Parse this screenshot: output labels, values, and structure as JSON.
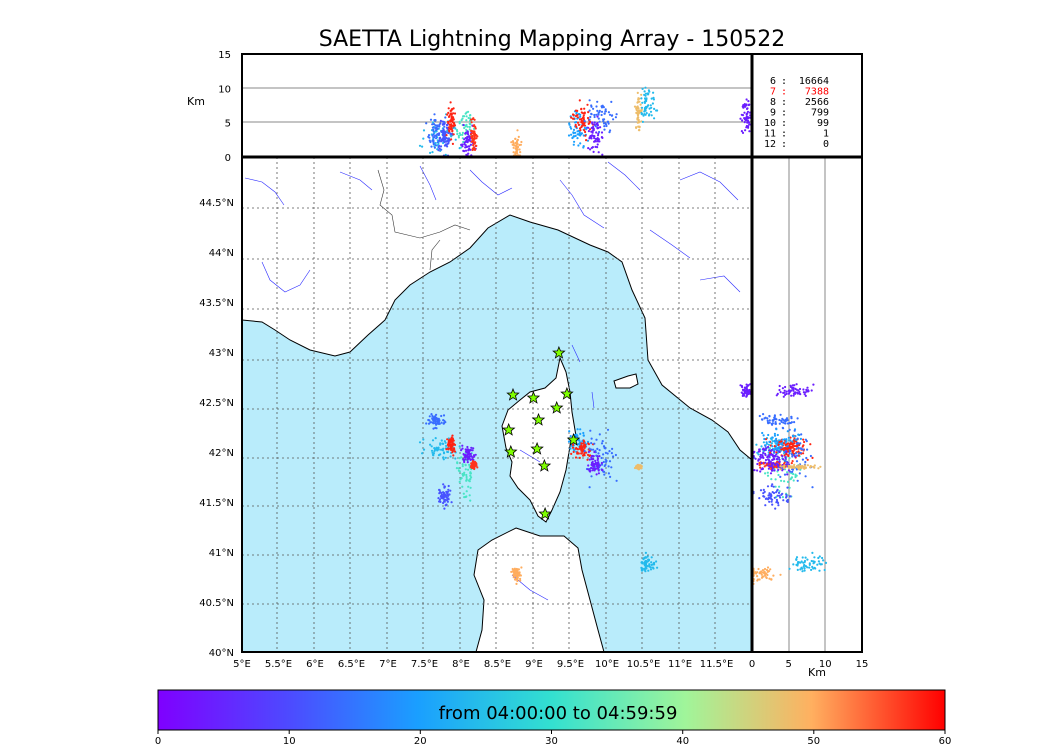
{
  "chart_data": {
    "type": "scatter",
    "title": "SAETTA Lightning Mapping Array - 150522",
    "map": {
      "lon_range": [
        5.0,
        12.0
      ],
      "lat_range": [
        40.0,
        44.95
      ],
      "lon_ticks": [
        "5°E",
        "5.5°E",
        "6°E",
        "6.5°E",
        "7°E",
        "7.5°E",
        "8°E",
        "8.5°E",
        "9°E",
        "9.5°E",
        "10°E",
        "10.5°E",
        "11°E",
        "11.5°E"
      ],
      "lat_ticks": [
        "40°N",
        "40.5°N",
        "41°N",
        "41.5°N",
        "42°N",
        "42.5°N",
        "43°N",
        "43.5°N",
        "44°N",
        "44.5°N"
      ],
      "grid": true,
      "sea_color": "#b9ecfb",
      "station_color": "#7fff00"
    },
    "altitude_panel": {
      "ylabel": "Km",
      "yticks": [
        "0",
        "5",
        "10",
        "15"
      ],
      "ylim": [
        0,
        15
      ]
    },
    "side_panel": {
      "xlabel": "Km",
      "xticks": [
        "0",
        "5",
        "10",
        "15"
      ],
      "xlim": [
        0,
        15
      ]
    },
    "station_count_table": [
      {
        "stations": "6",
        "sep": ":",
        "sources": "16664",
        "color": "#000000"
      },
      {
        "stations": "7",
        "sep": ":",
        "sources": "7388",
        "color": "#ff0000"
      },
      {
        "stations": "8",
        "sep": ":",
        "sources": "2566",
        "color": "#000000"
      },
      {
        "stations": "9",
        "sep": ":",
        "sources": "799",
        "color": "#000000"
      },
      {
        "stations": "10",
        "sep": ":",
        "sources": "99",
        "color": "#000000"
      },
      {
        "stations": "11",
        "sep": ":",
        "sources": "1",
        "color": "#000000"
      },
      {
        "stations": "12",
        "sep": ":",
        "sources": "0",
        "color": "#000000"
      }
    ],
    "stations": [
      {
        "lon": 9.35,
        "lat": 42.99
      },
      {
        "lon": 8.72,
        "lat": 42.57
      },
      {
        "lon": 9.0,
        "lat": 42.54
      },
      {
        "lon": 9.46,
        "lat": 42.58
      },
      {
        "lon": 9.32,
        "lat": 42.44
      },
      {
        "lon": 9.07,
        "lat": 42.32
      },
      {
        "lon": 8.66,
        "lat": 42.22
      },
      {
        "lon": 9.55,
        "lat": 42.12
      },
      {
        "lon": 9.05,
        "lat": 42.03
      },
      {
        "lon": 8.69,
        "lat": 42.0
      },
      {
        "lon": 9.15,
        "lat": 41.86
      },
      {
        "lon": 9.16,
        "lat": 41.38
      }
    ],
    "clusters": [
      {
        "lon": 7.72,
        "lat": 42.03,
        "sx": 0.12,
        "sy": 0.05,
        "time_min": 24,
        "z": 3.0
      },
      {
        "lon": 7.67,
        "lat": 42.31,
        "sx": 0.05,
        "sy": 0.03,
        "time_min": 14,
        "z": 3.5
      },
      {
        "lon": 7.88,
        "lat": 42.07,
        "sx": 0.03,
        "sy": 0.04,
        "time_min": 58,
        "z": 5.0
      },
      {
        "lon": 8.1,
        "lat": 41.77,
        "sx": 0.06,
        "sy": 0.12,
        "time_min": 32,
        "z": 4.0
      },
      {
        "lon": 8.1,
        "lat": 41.96,
        "sx": 0.05,
        "sy": 0.04,
        "time_min": 4,
        "z": 2.0
      },
      {
        "lon": 8.18,
        "lat": 41.87,
        "sx": 0.02,
        "sy": 0.02,
        "time_min": 57,
        "z": 3.0
      },
      {
        "lon": 7.78,
        "lat": 41.55,
        "sx": 0.04,
        "sy": 0.05,
        "time_min": 11,
        "z": 3.0
      },
      {
        "lon": 9.6,
        "lat": 42.13,
        "sx": 0.06,
        "sy": 0.05,
        "time_min": 20,
        "z": 4.0
      },
      {
        "lon": 9.67,
        "lat": 42.02,
        "sx": 0.06,
        "sy": 0.05,
        "time_min": 58,
        "z": 5.5
      },
      {
        "lon": 9.92,
        "lat": 41.95,
        "sx": 0.1,
        "sy": 0.12,
        "time_min": 14,
        "z": 6.0
      },
      {
        "lon": 9.85,
        "lat": 41.88,
        "sx": 0.05,
        "sy": 0.05,
        "time_min": 4,
        "z": 3.0
      },
      {
        "lon": 10.44,
        "lat": 41.85,
        "sx": 0.02,
        "sy": 0.01,
        "time_min": 48,
        "z": 6.5
      },
      {
        "lon": 10.57,
        "lat": 40.89,
        "sx": 0.05,
        "sy": 0.04,
        "time_min": 24,
        "z": 8.0
      },
      {
        "lon": 8.77,
        "lat": 40.77,
        "sx": 0.03,
        "sy": 0.04,
        "time_min": 50,
        "z": 1.0
      },
      {
        "lon": 11.93,
        "lat": 42.6,
        "sx": 0.04,
        "sy": 0.03,
        "time_min": 4,
        "z": 6.0
      }
    ],
    "colorbar": {
      "label": "from 04:00:00 to 04:59:59",
      "min": 0,
      "max": 60,
      "ticks": [
        "0",
        "10",
        "20",
        "30",
        "40",
        "50",
        "60"
      ],
      "colormap": "rainbow"
    }
  }
}
